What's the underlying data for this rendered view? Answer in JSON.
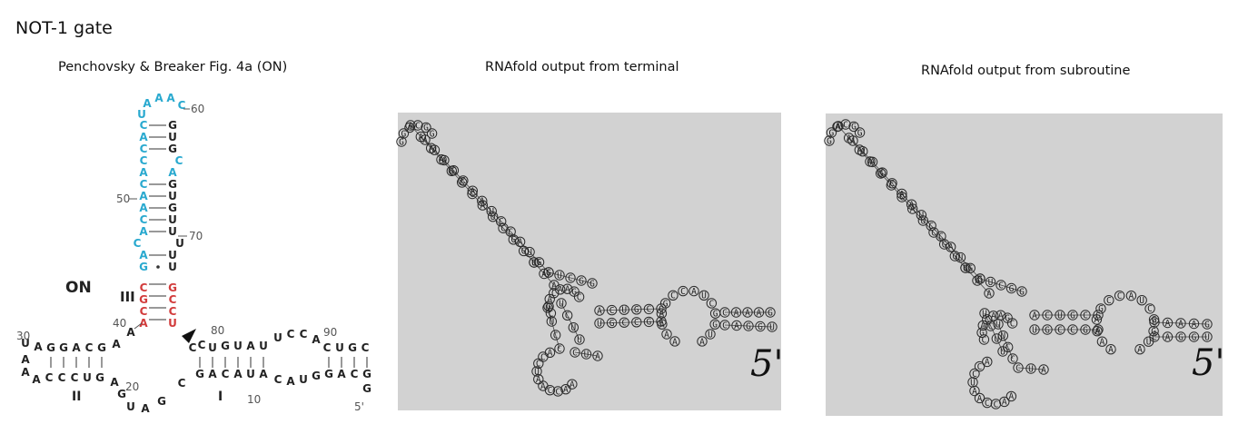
{
  "page_title": "NOT-1 gate",
  "panels": [
    {
      "caption": "Penchovsky & Breaker Fig. 4a (ON)"
    },
    {
      "caption": "RNAfold output from terminal",
      "end_label": "5'"
    },
    {
      "caption": "RNAfold output from subroutine",
      "end_label": "5'"
    }
  ],
  "figure": {
    "state_label": "ON",
    "stem_labels": [
      "III",
      "II",
      "I"
    ],
    "numbers": [
      "60",
      "50",
      "70",
      "40",
      "80",
      "30",
      "90",
      "20",
      "10",
      "5'"
    ],
    "colors": {
      "blue": "#29a9cf",
      "red": "#d23b3b",
      "black": "#222222"
    }
  },
  "sequence": "AAAAGCCAUCGGUAAACCAAUCCAUGGCAAGUCGGUCUUUUCCACUGCGUGCCGACAAAGCAGGUCUAGGACGGCGACAAGC"
}
